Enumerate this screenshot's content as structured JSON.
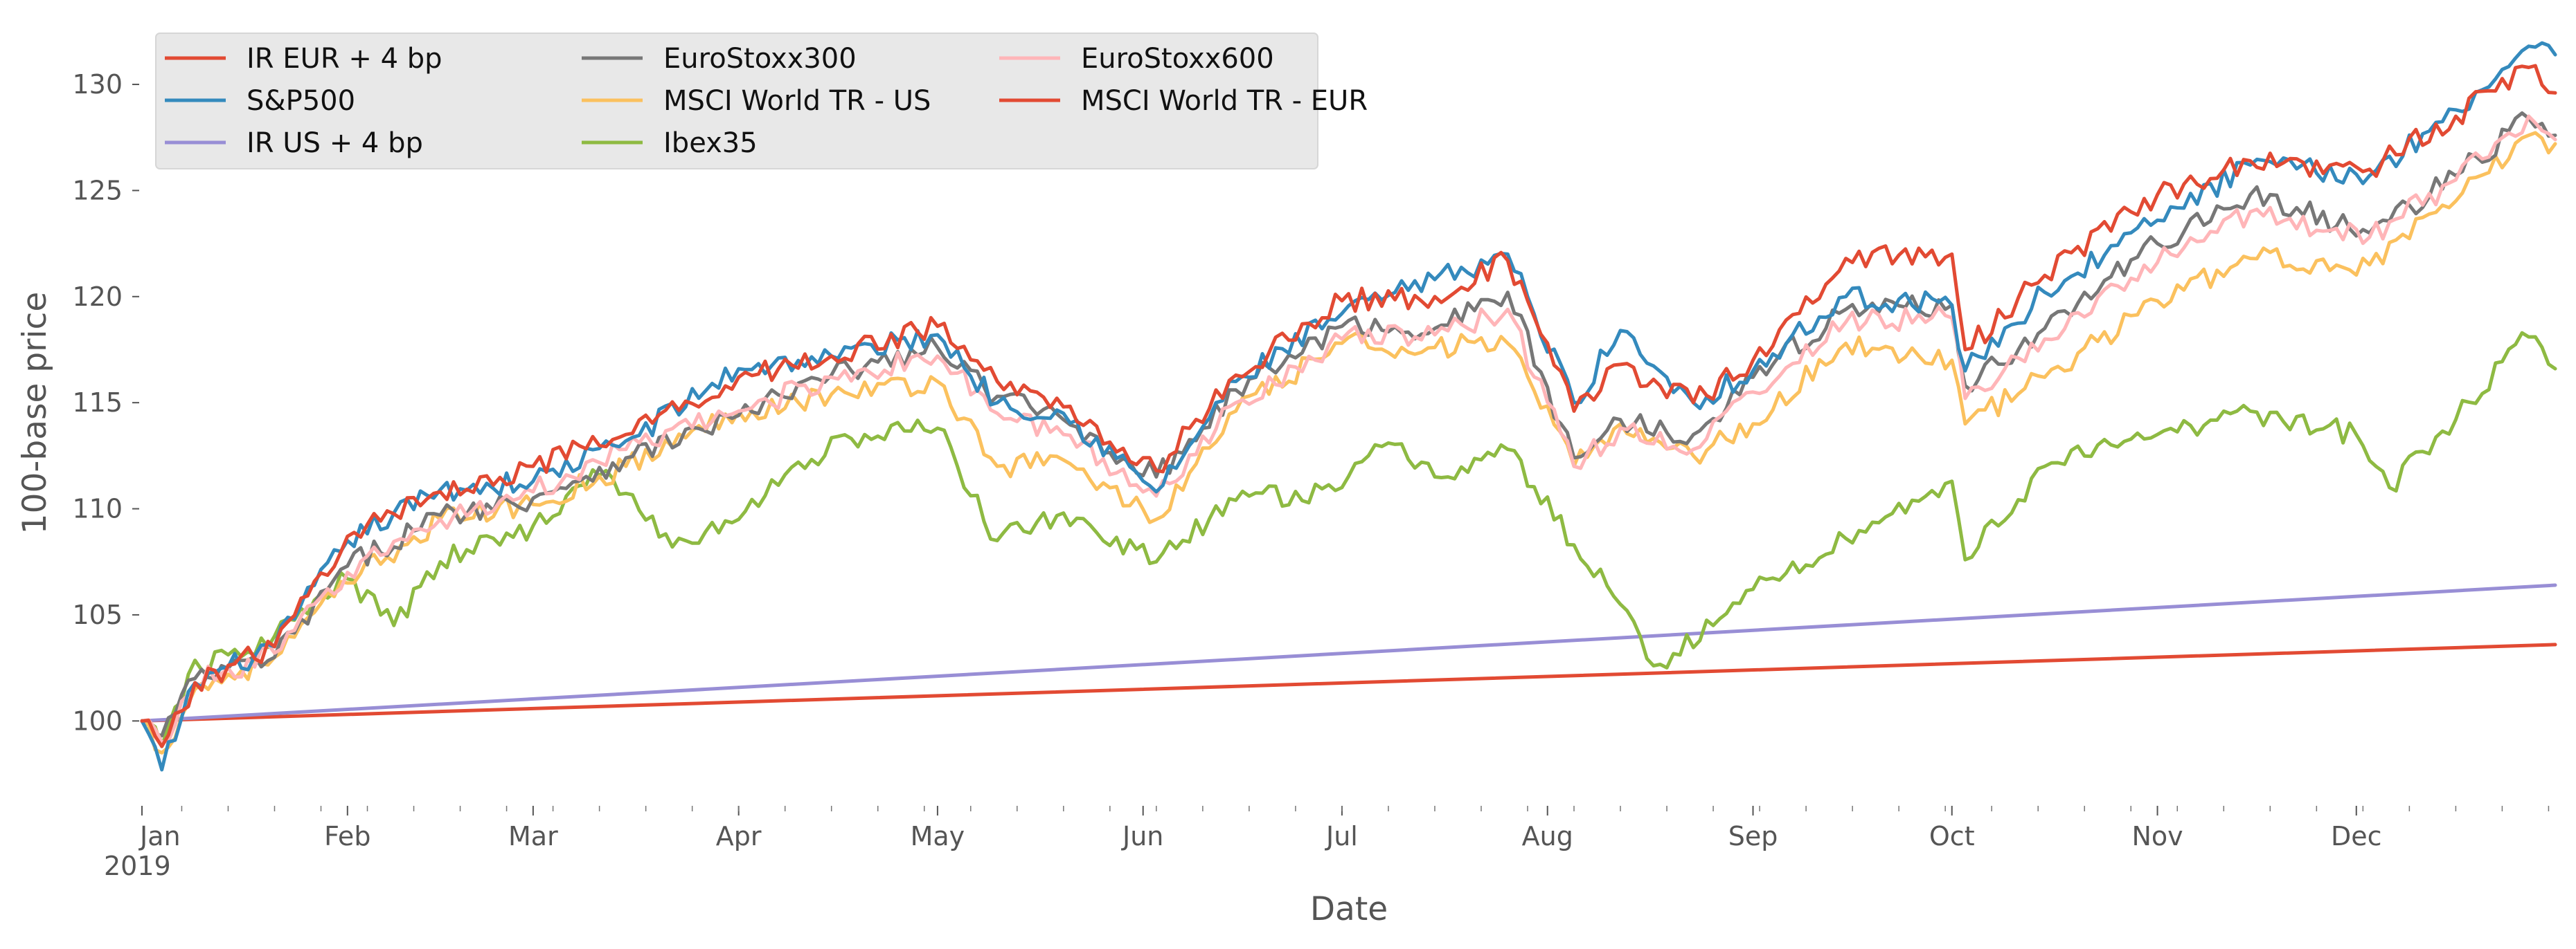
{
  "chart_data": {
    "type": "line",
    "title": "",
    "xlabel": "Date",
    "ylabel": "100-base price",
    "xlim": [
      "2019-01-01",
      "2019-12-31"
    ],
    "ylim": [
      96,
      133
    ],
    "grid": false,
    "legend_position": "top-left",
    "legend_columns": 3,
    "x_month_ticks": [
      {
        "date": "2019-01-01",
        "label": "Jan",
        "sublabel": "2019"
      },
      {
        "date": "2019-02-01",
        "label": "Feb",
        "sublabel": ""
      },
      {
        "date": "2019-03-01",
        "label": "Mar",
        "sublabel": ""
      },
      {
        "date": "2019-04-01",
        "label": "Apr",
        "sublabel": ""
      },
      {
        "date": "2019-05-01",
        "label": "May",
        "sublabel": ""
      },
      {
        "date": "2019-06-01",
        "label": "Jun",
        "sublabel": ""
      },
      {
        "date": "2019-07-01",
        "label": "Jul",
        "sublabel": ""
      },
      {
        "date": "2019-08-01",
        "label": "Aug",
        "sublabel": ""
      },
      {
        "date": "2019-09-01",
        "label": "Sep",
        "sublabel": ""
      },
      {
        "date": "2019-10-01",
        "label": "Oct",
        "sublabel": ""
      },
      {
        "date": "2019-11-01",
        "label": "Nov",
        "sublabel": ""
      },
      {
        "date": "2019-12-01",
        "label": "Dec",
        "sublabel": ""
      }
    ],
    "y_ticks": [
      100,
      105,
      110,
      115,
      120,
      125,
      130
    ],
    "series": [
      {
        "name": "IR EUR + 4 bp",
        "color": "#E24A33",
        "x": [
          "2019-01-01",
          "2019-12-31"
        ],
        "y": [
          100.0,
          103.6
        ]
      },
      {
        "name": "S&P500",
        "color": "#348ABD",
        "x": [
          "2019-01-01",
          "2019-01-04",
          "2019-01-09",
          "2019-01-21",
          "2019-02-01",
          "2019-02-15",
          "2019-03-01",
          "2019-03-15",
          "2019-04-01",
          "2019-04-15",
          "2019-05-01",
          "2019-05-10",
          "2019-05-20",
          "2019-06-03",
          "2019-06-15",
          "2019-07-01",
          "2019-07-15",
          "2019-07-26",
          "2019-08-05",
          "2019-08-12",
          "2019-08-23",
          "2019-09-01",
          "2019-09-15",
          "2019-10-01",
          "2019-10-03",
          "2019-10-15",
          "2019-11-01",
          "2019-11-15",
          "2019-12-03",
          "2019-12-16",
          "2019-12-27",
          "2019-12-31"
        ],
        "y": [
          100.0,
          97.7,
          101.8,
          103.5,
          108.5,
          110.9,
          111.3,
          113.2,
          116.6,
          117.2,
          118.2,
          115.0,
          114.5,
          110.8,
          116.0,
          119.2,
          120.8,
          122.0,
          115.0,
          118.4,
          115.0,
          116.5,
          120.0,
          119.6,
          116.5,
          120.2,
          123.6,
          126.2,
          125.7,
          128.8,
          131.8,
          131.4
        ]
      },
      {
        "name": "IR US + 4 bp",
        "color": "#988ED5",
        "x": [
          "2019-01-01",
          "2019-12-31"
        ],
        "y": [
          100.0,
          106.4
        ]
      },
      {
        "name": "EuroStoxx300",
        "color": "#777777",
        "x": [
          "2019-01-01",
          "2019-01-04",
          "2019-01-09",
          "2019-01-21",
          "2019-02-01",
          "2019-02-15",
          "2019-03-01",
          "2019-03-15",
          "2019-04-01",
          "2019-04-15",
          "2019-05-01",
          "2019-05-10",
          "2019-05-20",
          "2019-06-03",
          "2019-06-15",
          "2019-07-01",
          "2019-07-15",
          "2019-07-26",
          "2019-08-05",
          "2019-08-12",
          "2019-08-23",
          "2019-09-01",
          "2019-09-15",
          "2019-10-01",
          "2019-10-03",
          "2019-10-15",
          "2019-11-01",
          "2019-11-15",
          "2019-12-03",
          "2019-12-16",
          "2019-12-27",
          "2019-12-31"
        ],
        "y": [
          100.0,
          99.3,
          102.0,
          103.0,
          107.3,
          109.7,
          110.5,
          112.4,
          114.4,
          116.3,
          117.6,
          115.3,
          114.2,
          111.5,
          115.6,
          118.6,
          118.5,
          120.2,
          112.4,
          114.2,
          113.5,
          116.2,
          119.4,
          119.6,
          115.8,
          118.5,
          122.5,
          124.8,
          123.0,
          125.7,
          128.4,
          127.6
        ]
      },
      {
        "name": "MSCI World TR - US",
        "color": "#FBC15E",
        "x": [
          "2019-01-01",
          "2019-01-04",
          "2019-01-09",
          "2019-01-21",
          "2019-02-01",
          "2019-02-15",
          "2019-03-01",
          "2019-03-15",
          "2019-04-01",
          "2019-04-15",
          "2019-05-01",
          "2019-05-10",
          "2019-05-20",
          "2019-06-03",
          "2019-06-15",
          "2019-07-01",
          "2019-07-15",
          "2019-07-26",
          "2019-08-05",
          "2019-08-12",
          "2019-08-23",
          "2019-09-01",
          "2019-09-15",
          "2019-10-01",
          "2019-10-03",
          "2019-10-15",
          "2019-11-01",
          "2019-11-15",
          "2019-12-03",
          "2019-12-16",
          "2019-12-27",
          "2019-12-31"
        ],
        "y": [
          100.0,
          98.5,
          101.5,
          103.0,
          106.5,
          109.5,
          110.2,
          112.0,
          114.6,
          115.4,
          116.0,
          112.0,
          112.3,
          109.5,
          114.6,
          117.8,
          117.6,
          117.8,
          112.0,
          114.0,
          112.5,
          114.0,
          117.8,
          117.0,
          114.0,
          116.2,
          119.8,
          121.8,
          121.5,
          124.5,
          127.6,
          127.2
        ]
      },
      {
        "name": "Ibex35",
        "color": "#8EBA42",
        "x": [
          "2019-01-01",
          "2019-01-04",
          "2019-01-08",
          "2019-01-21",
          "2019-02-01",
          "2019-02-08",
          "2019-02-15",
          "2019-03-01",
          "2019-03-12",
          "2019-03-22",
          "2019-04-01",
          "2019-04-10",
          "2019-04-20",
          "2019-05-01",
          "2019-05-10",
          "2019-05-20",
          "2019-06-03",
          "2019-06-15",
          "2019-07-01",
          "2019-07-08",
          "2019-07-17",
          "2019-07-26",
          "2019-08-05",
          "2019-08-12",
          "2019-08-17",
          "2019-08-26",
          "2019-09-01",
          "2019-09-15",
          "2019-10-01",
          "2019-10-03",
          "2019-10-15",
          "2019-11-01",
          "2019-11-15",
          "2019-12-01",
          "2019-12-06",
          "2019-12-16",
          "2019-12-27",
          "2019-12-31"
        ],
        "y": [
          100.0,
          98.8,
          102.2,
          104.0,
          106.7,
          104.5,
          107.5,
          109.2,
          111.8,
          108.2,
          109.5,
          112.2,
          113.5,
          113.8,
          108.5,
          109.8,
          107.5,
          110.4,
          111.0,
          113.1,
          111.5,
          112.8,
          108.3,
          105.5,
          102.6,
          104.5,
          106.2,
          108.6,
          111.3,
          107.6,
          112.0,
          113.5,
          114.6,
          113.5,
          111.0,
          114.2,
          118.1,
          116.6
        ]
      },
      {
        "name": "EuroStoxx600",
        "color": "#FFB5B8",
        "x": [
          "2019-01-01",
          "2019-01-04",
          "2019-01-09",
          "2019-01-21",
          "2019-02-01",
          "2019-02-15",
          "2019-03-01",
          "2019-03-15",
          "2019-04-01",
          "2019-04-15",
          "2019-05-01",
          "2019-05-10",
          "2019-05-20",
          "2019-06-03",
          "2019-06-15",
          "2019-07-01",
          "2019-07-15",
          "2019-07-26",
          "2019-08-05",
          "2019-08-12",
          "2019-08-23",
          "2019-09-01",
          "2019-09-15",
          "2019-10-01",
          "2019-10-03",
          "2019-10-15",
          "2019-11-01",
          "2019-11-15",
          "2019-12-03",
          "2019-12-16",
          "2019-12-27",
          "2019-12-31"
        ],
        "y": [
          100.0,
          99.0,
          101.8,
          103.2,
          107.0,
          109.5,
          110.8,
          112.8,
          114.6,
          116.2,
          117.2,
          114.5,
          113.5,
          110.6,
          115.0,
          118.0,
          118.2,
          119.4,
          112.0,
          113.8,
          112.8,
          115.5,
          118.8,
          119.0,
          115.2,
          118.0,
          121.6,
          124.0,
          122.8,
          125.5,
          128.5,
          127.4
        ]
      },
      {
        "name": "MSCI World TR - EUR",
        "color": "#E24A33",
        "x": [
          "2019-01-01",
          "2019-01-04",
          "2019-01-09",
          "2019-01-21",
          "2019-02-01",
          "2019-02-15",
          "2019-03-01",
          "2019-03-15",
          "2019-04-01",
          "2019-04-15",
          "2019-05-01",
          "2019-05-10",
          "2019-05-20",
          "2019-06-03",
          "2019-06-15",
          "2019-07-01",
          "2019-07-15",
          "2019-07-26",
          "2019-08-05",
          "2019-08-12",
          "2019-08-23",
          "2019-09-01",
          "2019-09-15",
          "2019-10-01",
          "2019-10-03",
          "2019-10-15",
          "2019-11-01",
          "2019-11-15",
          "2019-12-03",
          "2019-12-16",
          "2019-12-27",
          "2019-12-31"
        ],
        "y": [
          100.0,
          98.8,
          101.8,
          103.5,
          108.7,
          110.8,
          112.0,
          113.5,
          116.2,
          117.2,
          118.6,
          116.0,
          114.8,
          111.8,
          116.3,
          119.8,
          120.0,
          121.7,
          114.6,
          116.8,
          115.0,
          117.0,
          121.8,
          122.0,
          117.5,
          121.0,
          124.8,
          126.4,
          126.0,
          128.5,
          130.8,
          129.6
        ]
      }
    ]
  }
}
